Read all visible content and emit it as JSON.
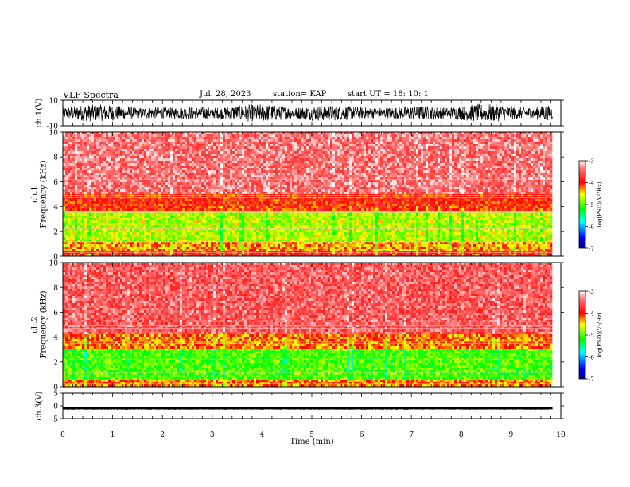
{
  "header": {
    "title": "VLF Spectra",
    "date": "Jul. 28, 2023",
    "station": "station= KAP",
    "start": "start UT = 18: 10: 1"
  },
  "chart_data": [
    {
      "type": "line",
      "panel": "ch1-waveform",
      "ylabel": "ch.1(V)",
      "ylim": [
        -10,
        10
      ],
      "yticks": [
        "10",
        "-10"
      ],
      "xlim": [
        0,
        10
      ],
      "trace_xlim": [
        0,
        9.83
      ],
      "trace_range_V": [
        -7,
        7
      ],
      "color": "#000000"
    },
    {
      "type": "heatmap",
      "panel": "ch1-spectrogram",
      "ylabel": "ch.1\nFrequency (kHz)",
      "ylim": [
        0,
        10
      ],
      "yticks": [
        "0",
        "2",
        "4",
        "6",
        "8",
        "10"
      ],
      "xlim": [
        0,
        10
      ],
      "data_xlim": [
        0,
        9.83
      ],
      "bands": [
        {
          "fmin": 0.0,
          "fmax": 0.4,
          "logPSD": -4.0
        },
        {
          "fmin": 0.4,
          "fmax": 1.2,
          "logPSD": -4.3
        },
        {
          "fmin": 1.2,
          "fmax": 3.6,
          "logPSD": -4.7
        },
        {
          "fmin": 3.6,
          "fmax": 5.0,
          "logPSD": -4.0
        },
        {
          "fmin": 5.0,
          "fmax": 10.0,
          "logPSD": -3.4
        }
      ],
      "colorbar": {
        "label": "log(PSD)(V²/Hz)",
        "range": [
          -7,
          -3
        ],
        "ticks": [
          "-3",
          "-4",
          "-5",
          "-6",
          "-7"
        ]
      }
    },
    {
      "type": "heatmap",
      "panel": "ch2-spectrogram",
      "ylabel": "ch.2\nFrequency (kHz)",
      "ylim": [
        0,
        10
      ],
      "yticks": [
        "0",
        "2",
        "4",
        "6",
        "8",
        "10"
      ],
      "xlim": [
        0,
        10
      ],
      "data_xlim": [
        0,
        9.83
      ],
      "bands": [
        {
          "fmin": 0.0,
          "fmax": 0.5,
          "logPSD": -4.2
        },
        {
          "fmin": 0.5,
          "fmax": 3.0,
          "logPSD": -5.0
        },
        {
          "fmin": 3.0,
          "fmax": 4.2,
          "logPSD": -4.2
        },
        {
          "fmin": 4.2,
          "fmax": 10.0,
          "logPSD": -3.5
        }
      ],
      "colorbar": {
        "label": "log(PSD)(V²/Hz)",
        "range": [
          -7,
          -3
        ],
        "ticks": [
          "-3",
          "-4",
          "-5",
          "-6",
          "-7"
        ]
      }
    },
    {
      "type": "line",
      "panel": "ch3-waveform",
      "ylabel": "ch.3(V)",
      "ylim": [
        -5,
        5
      ],
      "yticks": [
        "5",
        "0",
        "-5"
      ],
      "xlim": [
        0,
        10
      ],
      "trace_xlim": [
        0,
        9.83
      ],
      "trace_center_V": -0.9,
      "trace_range_V": [
        -1.4,
        -0.5
      ],
      "color": "#000000",
      "xlabel": "Time (min)",
      "xticks": [
        "0",
        "1",
        "2",
        "3",
        "4",
        "5",
        "6",
        "7",
        "8",
        "9",
        "10"
      ]
    }
  ],
  "colors": {
    "high": "#ff0000",
    "mid": "#ffff00",
    "low": "#00ff00",
    "lowest": "#0000ff",
    "background": "#ffffff"
  }
}
